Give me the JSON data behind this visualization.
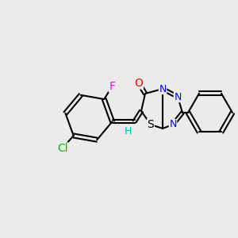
{
  "background_color": "#ebebeb",
  "bond_color": "#000000",
  "bond_width": 1.5,
  "font_size": 9,
  "atom_colors": {
    "O": "#ff0000",
    "N": "#0000ff",
    "S": "#000000",
    "Cl": "#00bb00",
    "F": "#ff00ff",
    "H": "#00bbbb",
    "C": "#000000"
  },
  "figsize": [
    3.0,
    3.0
  ],
  "dpi": 100
}
